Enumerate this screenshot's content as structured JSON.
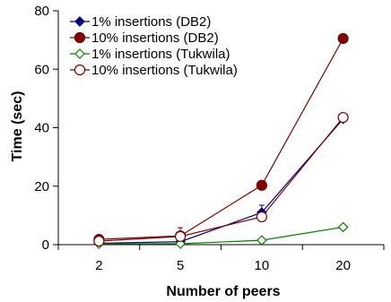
{
  "chart_data": {
    "type": "line",
    "title": "",
    "xlabel": "Number of peers",
    "ylabel": "Time (sec)",
    "categories": [
      "2",
      "5",
      "10",
      "20"
    ],
    "ylim": [
      0,
      80
    ],
    "yticks": [
      0,
      20,
      40,
      60,
      80
    ],
    "grid": false,
    "legend_position": "top-left",
    "series": [
      {
        "name": "1% insertions (DB2)",
        "values": [
          0.5,
          1.0,
          11.0,
          43.0
        ],
        "errors": [
          0,
          0,
          2.5,
          0
        ],
        "color": "#00007f",
        "marker": "diamond",
        "filled": true
      },
      {
        "name": "10% insertions (DB2)",
        "values": [
          1.8,
          3.0,
          20.3,
          70.5
        ],
        "errors": [
          0,
          0,
          0,
          0
        ],
        "color": "#7f0000",
        "marker": "circle",
        "filled": true
      },
      {
        "name": "1% insertions (Tukwila)",
        "values": [
          0.3,
          0.3,
          1.5,
          6.0
        ],
        "errors": [
          0,
          0,
          0,
          0
        ],
        "color": "#008000",
        "marker": "diamond",
        "filled": false
      },
      {
        "name": "10% insertions (Tukwila)",
        "values": [
          1.2,
          2.8,
          9.5,
          43.5
        ],
        "errors": [
          0,
          3.0,
          1.5,
          0
        ],
        "color": "#7f0000",
        "marker": "circle",
        "filled": false
      }
    ]
  }
}
